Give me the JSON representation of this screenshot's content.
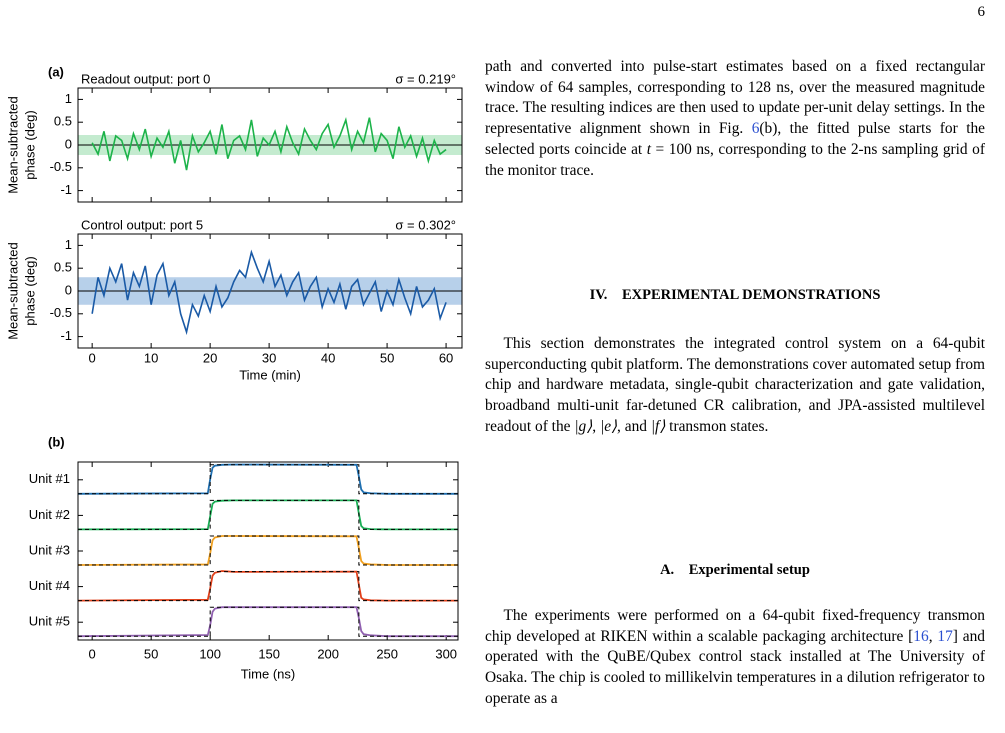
{
  "page_number": "6",
  "figure": {
    "panel_a": {
      "label": "(a)",
      "xlim": [
        -2.4,
        62.7
      ],
      "xticks": [
        0,
        10,
        20,
        30,
        40,
        50,
        60
      ],
      "xlabel": "Time (min)",
      "x": [
        0,
        1,
        2,
        3,
        4,
        5,
        6,
        7,
        8,
        9,
        10,
        11,
        12,
        13,
        14,
        15,
        16,
        17,
        18,
        19,
        20,
        21,
        22,
        23,
        24,
        25,
        26,
        27,
        28,
        29,
        30,
        31,
        32,
        33,
        34,
        35,
        36,
        37,
        38,
        39,
        40,
        41,
        42,
        43,
        44,
        45,
        46,
        47,
        48,
        49,
        50,
        51,
        52,
        53,
        54,
        55,
        56,
        57,
        58,
        59,
        60
      ],
      "subplots": [
        {
          "title": "Readout output: port 0",
          "sigma": {
            "value": 0.219,
            "label": "σ = 0.219°"
          },
          "ylabel": [
            "Mean-subtracted",
            "phase (deg)"
          ],
          "ylim": [
            -1.25,
            1.25
          ],
          "yticks": [
            1,
            0.5,
            0,
            -0.5,
            -1
          ],
          "color": "#1db34a",
          "band_color": "#c4ebcf",
          "zero_line": true,
          "values": [
            0.05,
            -0.2,
            0.3,
            -0.35,
            0.2,
            0.1,
            -0.3,
            0.25,
            -0.1,
            0.35,
            -0.25,
            0.15,
            -0.05,
            0.3,
            -0.4,
            0.1,
            -0.55,
            0.2,
            -0.15,
            0.05,
            0.3,
            -0.2,
            0.45,
            -0.3,
            0.1,
            0.2,
            -0.1,
            0.55,
            -0.25,
            0.15,
            0.0,
            0.3,
            -0.15,
            0.4,
            0.05,
            -0.2,
            0.35,
            0.1,
            -0.1,
            0.25,
            0.45,
            -0.05,
            0.2,
            0.55,
            -0.1,
            0.3,
            0.05,
            0.6,
            -0.15,
            0.25,
            0.1,
            -0.3,
            0.4,
            -0.05,
            0.2,
            -0.25,
            0.15,
            -0.35,
            0.1,
            -0.2,
            -0.1
          ]
        },
        {
          "title": "Control output: port 5",
          "sigma": {
            "value": 0.302,
            "label": "σ = 0.302°"
          },
          "ylabel": [
            "Mean-subtracted",
            "phase (deg)"
          ],
          "ylim": [
            -1.25,
            1.25
          ],
          "yticks": [
            1,
            0.5,
            0,
            -0.5,
            -1
          ],
          "color": "#1a5aa6",
          "band_color": "#b7d0ea",
          "zero_line": true,
          "values": [
            -0.5,
            0.3,
            -0.1,
            0.5,
            0.2,
            0.6,
            -0.2,
            0.4,
            0.1,
            0.55,
            -0.3,
            0.35,
            0.6,
            -0.1,
            0.2,
            -0.5,
            -0.9,
            -0.3,
            -0.55,
            -0.1,
            -0.45,
            0.1,
            -0.35,
            -0.15,
            0.2,
            0.45,
            0.3,
            0.85,
            0.5,
            0.2,
            0.65,
            0.1,
            0.35,
            -0.1,
            0.2,
            0.4,
            -0.2,
            0.1,
            0.3,
            -0.35,
            0.05,
            -0.25,
            0.15,
            -0.4,
            0.1,
            0.25,
            -0.3,
            -0.05,
            0.2,
            -0.45,
            0.0,
            -0.3,
            0.25,
            -0.15,
            -0.5,
            0.1,
            -0.35,
            -0.2,
            0.05,
            -0.6,
            -0.25
          ]
        }
      ]
    },
    "panel_b": {
      "label": "(b)",
      "xlim": [
        -12,
        310
      ],
      "xticks": [
        0,
        50,
        100,
        150,
        200,
        250,
        300
      ],
      "xlabel": "Time (ns)",
      "categories": [
        "Unit #1",
        "Unit #2",
        "Unit #3",
        "Unit #4",
        "Unit #5"
      ],
      "x": [
        -12,
        98,
        100,
        102,
        104,
        110,
        120,
        224,
        226,
        228,
        230,
        236,
        250,
        310
      ],
      "reference": {
        "x": [
          -12,
          100,
          100,
          226,
          226,
          310
        ],
        "values": [
          0,
          0,
          1,
          1,
          0,
          0
        ]
      },
      "series": [
        {
          "name": "Unit #1",
          "color": "#1f6fb0",
          "values": [
            0,
            0.02,
            0.5,
            0.9,
            0.97,
            1,
            1.01,
            1,
            0.6,
            0.15,
            0.05,
            0.02,
            0,
            0
          ]
        },
        {
          "name": "Unit #2",
          "color": "#1aae55",
          "values": [
            0,
            0.01,
            0.45,
            0.88,
            0.96,
            0.99,
            1,
            1,
            0.55,
            0.12,
            0.04,
            0.01,
            0,
            0
          ]
        },
        {
          "name": "Unit #3",
          "color": "#f0a020",
          "values": [
            0,
            0.02,
            0.4,
            0.85,
            0.95,
            1,
            1,
            0.99,
            0.58,
            0.14,
            0.05,
            0.02,
            0,
            0
          ]
        },
        {
          "name": "Unit #4",
          "color": "#e0401a",
          "values": [
            0,
            0.03,
            0.42,
            0.86,
            0.96,
            1.02,
            0.99,
            1,
            0.55,
            0.1,
            0.04,
            0.01,
            0,
            0
          ]
        },
        {
          "name": "Unit #5",
          "color": "#9060b0",
          "values": [
            0,
            0.04,
            0.38,
            0.84,
            0.95,
            1,
            1,
            1,
            0.62,
            0.18,
            0.07,
            0.03,
            0,
            0
          ]
        }
      ]
    }
  },
  "body": [
    {
      "kind": "paragraph",
      "indent": false,
      "segments": [
        {
          "text": "path and converted into pulse-start estimates based on a fixed rectangular window of 64 samples, corresponding to 128 ns, over the measured magnitude trace. The resulting indices are then used to update per-unit delay settings. In the representative alignment shown in Fig. "
        },
        {
          "text": "6",
          "ref": true
        },
        {
          "text": "(b), the fitted pulse starts for the selected ports coincide at "
        },
        {
          "text": "t",
          "math": true
        },
        {
          "text": " = 100 ns, corresponding to the 2-ns sampling grid of the monitor trace."
        }
      ]
    },
    {
      "kind": "heading",
      "number": "IV.",
      "title": "EXPERIMENTAL DEMONSTRATIONS"
    },
    {
      "kind": "paragraph",
      "indent": true,
      "segments": [
        {
          "text": "This section demonstrates the integrated control system on a 64-qubit superconducting qubit platform. The demonstrations cover automated setup from chip and hardware metadata, single-qubit characterization and gate validation, broadband multi-unit far-detuned CR calibration, and JPA-assisted multilevel readout of the "
        },
        {
          "text": "|g⟩",
          "math": true
        },
        {
          "text": ", "
        },
        {
          "text": "|e⟩",
          "math": true
        },
        {
          "text": ", and "
        },
        {
          "text": "|f⟩",
          "math": true
        },
        {
          "text": " transmon states."
        }
      ]
    },
    {
      "kind": "heading",
      "number": "A.",
      "title": "Experimental setup"
    },
    {
      "kind": "paragraph",
      "indent": true,
      "segments": [
        {
          "text": "The experiments were performed on a 64-qubit fixed-frequency transmon chip developed at RIKEN within a scalable packaging architecture ["
        },
        {
          "text": "16",
          "ref": true
        },
        {
          "text": ", "
        },
        {
          "text": "17",
          "ref": true
        },
        {
          "text": "] and operated with the QuBE/Qubex control stack installed at The University of Osaka. The chip is cooled to millikelvin temperatures in a dilution refrigerator to operate as a"
        }
      ]
    }
  ]
}
